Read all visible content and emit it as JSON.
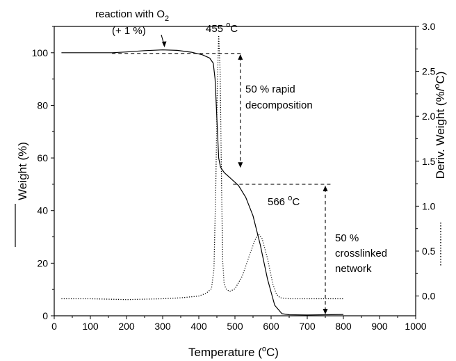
{
  "chart_data": {
    "type": "line",
    "title": "",
    "xlabel": "Temperature (°C)",
    "ylabel": "Weight (%)",
    "y2label": "Deriv. Weight (%/°C)",
    "xlim": [
      0,
      1000
    ],
    "ylim": [
      0,
      110
    ],
    "y2lim": [
      -0.22,
      3.0
    ],
    "x_ticks": [
      0,
      100,
      200,
      300,
      400,
      500,
      600,
      700,
      800,
      900,
      1000
    ],
    "y_ticks": [
      0,
      20,
      40,
      60,
      80,
      100
    ],
    "y2_ticks": [
      0.0,
      0.5,
      1.0,
      1.5,
      2.0,
      2.5,
      3.0
    ],
    "grid": false,
    "series": [
      {
        "axis": "left",
        "style": "solid",
        "x": [
          20,
          100,
          160,
          200,
          250,
          300,
          340,
          380,
          410,
          430,
          440,
          445,
          450,
          455,
          460,
          470,
          490,
          510,
          530,
          550,
          570,
          590,
          610,
          630,
          650,
          700,
          750,
          800
        ],
        "y": [
          100,
          100,
          100,
          100.3,
          100.8,
          101.1,
          100.9,
          100.2,
          99.2,
          98,
          96,
          90,
          75,
          60,
          56.5,
          54.5,
          52,
          49.5,
          45,
          38,
          27,
          14,
          4,
          0.8,
          0.4,
          0.3,
          0.4,
          0.5
        ]
      },
      {
        "axis": "right",
        "style": "dotted",
        "x": [
          20,
          100,
          200,
          300,
          350,
          400,
          420,
          435,
          442,
          447,
          451,
          455,
          459,
          463,
          466,
          470,
          475,
          485,
          500,
          520,
          540,
          555,
          565,
          575,
          590,
          605,
          615,
          625,
          650,
          700,
          750,
          800
        ],
        "y": [
          -0.03,
          -0.03,
          -0.04,
          -0.03,
          -0.02,
          0.0,
          0.03,
          0.08,
          0.3,
          1.2,
          2.3,
          2.9,
          2.5,
          1.2,
          0.4,
          0.14,
          0.08,
          0.05,
          0.08,
          0.22,
          0.45,
          0.62,
          0.69,
          0.64,
          0.42,
          0.13,
          0.02,
          -0.02,
          -0.03,
          -0.03,
          -0.03,
          -0.03
        ]
      }
    ],
    "annotations": [
      {
        "text_main": "reaction with O",
        "text_sub": "2",
        "line2": "(+ 1 %)"
      },
      {
        "text_main": "455 ",
        "text_sup": "o",
        "text_tail": "C"
      },
      {
        "line1": "50 % rapid",
        "line2": "decomposition"
      },
      {
        "text_main": "566 ",
        "text_sup": "o",
        "text_tail": "C"
      },
      {
        "line1": "50 %",
        "line2": "crosslinked",
        "line3": "network"
      }
    ]
  },
  "labels": {
    "x_title_main": "Temperature (",
    "x_title_sup": "o",
    "x_title_tail": "C)",
    "y_title": "Weight (%)",
    "y2_title_main": "Deriv. Weight (%/",
    "y2_title_sup": "o",
    "y2_title_tail": "C)"
  }
}
